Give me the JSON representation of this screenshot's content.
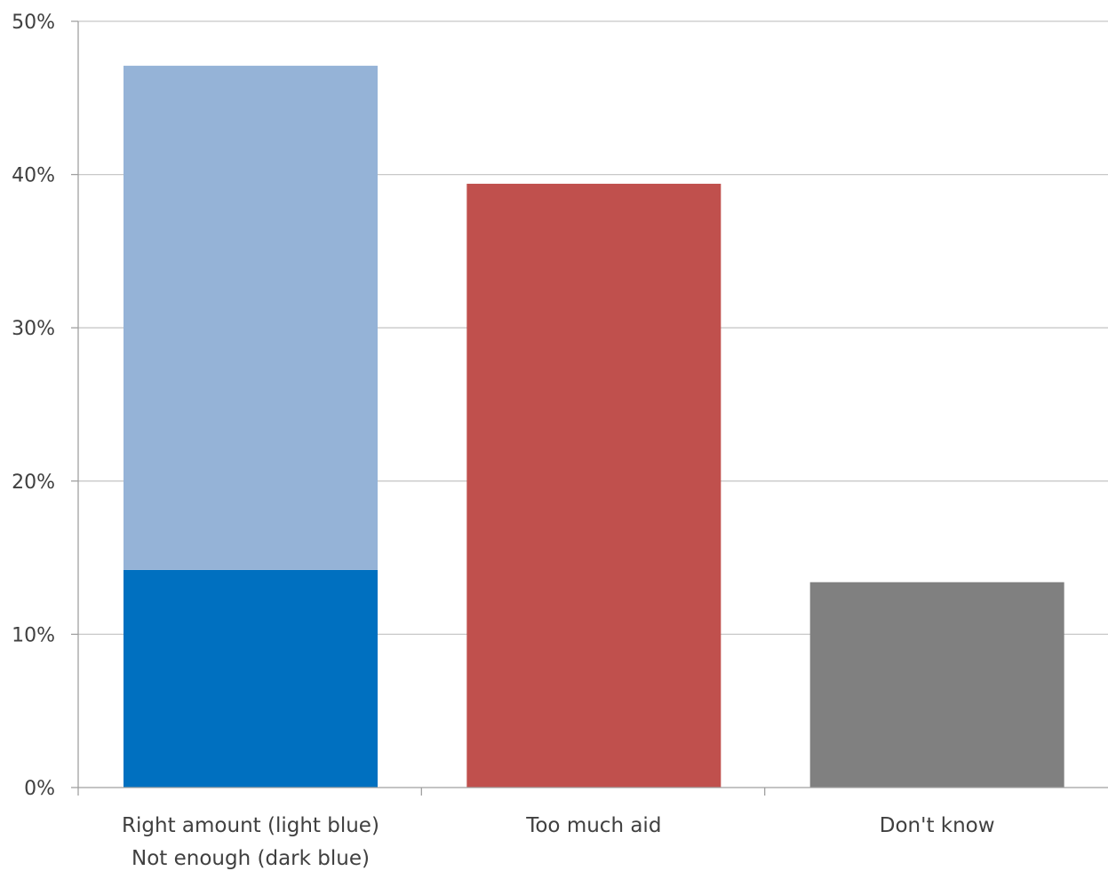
{
  "chart_data": {
    "type": "bar",
    "stacked": true,
    "categories": [
      [
        "Right amount (light blue)",
        "Not enough (dark blue)"
      ],
      [
        "Too much aid"
      ],
      [
        "Don't know"
      ]
    ],
    "series": [
      {
        "values": [
          14.2,
          39.4,
          13.4
        ],
        "colors": [
          "#0070c0",
          "#c0504d",
          "#808080"
        ]
      },
      {
        "values": [
          32.9,
          0,
          0
        ],
        "colors": [
          "#95b3d7",
          "#95b3d7",
          "#95b3d7"
        ]
      }
    ],
    "ylim": [
      0,
      50
    ],
    "yticks": [
      0,
      10,
      20,
      30,
      40,
      50
    ],
    "ytick_labels": [
      "0%",
      "10%",
      "20%",
      "30%",
      "40%",
      "50%"
    ],
    "grid": true,
    "legend": "none"
  }
}
